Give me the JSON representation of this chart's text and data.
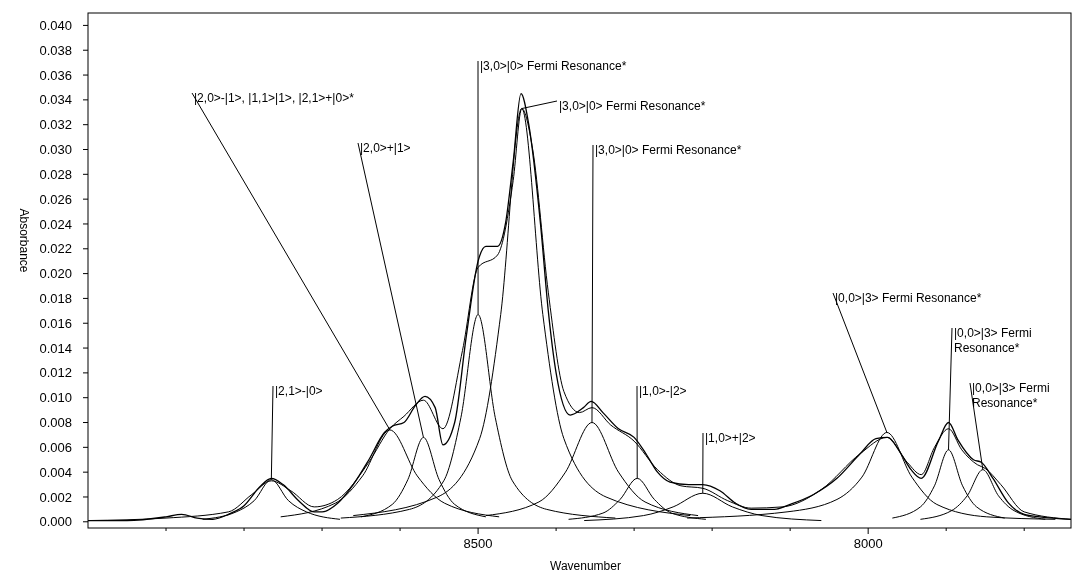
{
  "chart_data": {
    "type": "line",
    "xlabel": "Wavenumber",
    "ylabel": "Absorbance",
    "xlim": [
      9000,
      7740
    ],
    "ylim": [
      -0.0005,
      0.041
    ],
    "xticks": [
      {
        "value": 8900,
        "label": null
      },
      {
        "value": 8800,
        "label": null
      },
      {
        "value": 8700,
        "label": null
      },
      {
        "value": 8600,
        "label": null
      },
      8500,
      {
        "value": 8400,
        "label": null
      },
      {
        "value": 8300,
        "label": null
      },
      {
        "value": 8200,
        "label": null
      },
      {
        "value": 8100,
        "label": null
      },
      8000,
      {
        "value": 7900,
        "label": null
      },
      {
        "value": 7800,
        "label": null
      }
    ],
    "yticks": [
      {
        "value": 0,
        "label": "0.000"
      },
      {
        "value": 0.002,
        "label": "0.002"
      },
      {
        "value": 0.004,
        "label": "0.004"
      },
      {
        "value": 0.006,
        "label": "0.006"
      },
      {
        "value": 0.008,
        "label": "0.008"
      },
      {
        "value": 0.01,
        "label": "0.010"
      },
      {
        "value": 0.012,
        "label": "0.012"
      },
      {
        "value": 0.014,
        "label": "0.014"
      },
      {
        "value": 0.016,
        "label": "0.016"
      },
      {
        "value": 0.018,
        "label": "0.018"
      },
      {
        "value": 0.02,
        "label": "0.020"
      },
      {
        "value": 0.022,
        "label": "0.022"
      },
      {
        "value": 0.024,
        "label": "0.024"
      },
      {
        "value": 0.026,
        "label": "0.026"
      },
      {
        "value": 0.028,
        "label": "0.028"
      },
      {
        "value": 0.03,
        "label": "0.030"
      },
      {
        "value": 0.032,
        "label": "0.032"
      },
      {
        "value": 0.034,
        "label": "0.034"
      },
      {
        "value": 0.036,
        "label": "0.036"
      },
      {
        "value": 0.038,
        "label": "0.038"
      },
      {
        "value": 0.04,
        "label": "0.040"
      }
    ],
    "grid": false,
    "series": [
      {
        "color": "#000000",
        "x": [
          9000,
          8950,
          8900,
          8880,
          8860,
          8840,
          8820,
          8800,
          8780,
          8765,
          8750,
          8730,
          8710,
          8700,
          8680,
          8660,
          8640,
          8620,
          8610,
          8595,
          8580,
          8568,
          8555,
          8545,
          8530,
          8515,
          8500,
          8490,
          8475,
          8465,
          8455,
          8445,
          8435,
          8420,
          8410,
          8400,
          8382,
          8365,
          8355,
          8340,
          8320,
          8300,
          8285,
          8270,
          8254,
          8230,
          8212,
          8190,
          8170,
          8150,
          8120,
          8100,
          8070,
          8040,
          8010,
          7990,
          7975,
          7960,
          7945,
          7932,
          7910,
          7897,
          7885,
          7865,
          7855,
          7840,
          7820,
          7800,
          7780,
          7740
        ],
        "values": [
          0.0001,
          0.0001,
          0.0004,
          0.0006,
          0.0003,
          0.0002,
          0.0006,
          0.0013,
          0.0028,
          0.0035,
          0.003,
          0.0017,
          0.0008,
          0.0008,
          0.0015,
          0.003,
          0.005,
          0.0072,
          0.0077,
          0.008,
          0.0094,
          0.0101,
          0.0092,
          0.0062,
          0.008,
          0.015,
          0.021,
          0.0222,
          0.0222,
          0.024,
          0.029,
          0.0345,
          0.032,
          0.024,
          0.017,
          0.012,
          0.0086,
          0.0092,
          0.0097,
          0.0088,
          0.0075,
          0.0068,
          0.0055,
          0.004,
          0.0032,
          0.003,
          0.003,
          0.0025,
          0.0015,
          0.001,
          0.001,
          0.0014,
          0.0022,
          0.0035,
          0.0055,
          0.0067,
          0.0068,
          0.0057,
          0.0042,
          0.0035,
          0.0065,
          0.008,
          0.0066,
          0.005,
          0.0048,
          0.0035,
          0.0015,
          0.0006,
          0.0004,
          0.0002
        ]
      },
      {
        "color": "#000000",
        "x": [
          9000,
          8900,
          8820,
          8790,
          8765,
          8740,
          8710,
          8680,
          8640,
          8613,
          8595,
          8570,
          8545,
          8520,
          8500,
          8475,
          8455,
          8444,
          8430,
          8410,
          8390,
          8370,
          8354,
          8330,
          8300,
          8270,
          8240,
          8212,
          8180,
          8150,
          8110,
          8060,
          8010,
          7976,
          7950,
          7932,
          7915,
          7897,
          7880,
          7860,
          7850,
          7830,
          7800,
          7740
        ],
        "values": [
          0.0001,
          0.0003,
          0.0008,
          0.0022,
          0.0033,
          0.0025,
          0.0012,
          0.0018,
          0.0048,
          0.0075,
          0.0085,
          0.0098,
          0.0075,
          0.0138,
          0.0205,
          0.0215,
          0.0275,
          0.0333,
          0.03,
          0.0185,
          0.0105,
          0.0088,
          0.0092,
          0.0078,
          0.0065,
          0.0042,
          0.0029,
          0.0027,
          0.0017,
          0.0011,
          0.0012,
          0.0026,
          0.0055,
          0.0068,
          0.0048,
          0.0038,
          0.006,
          0.0075,
          0.0058,
          0.0046,
          0.0043,
          0.003,
          0.0008,
          0.0002
        ]
      },
      {
        "color": "#000000",
        "x": [
          8853,
          8810,
          8787,
          8765,
          8743,
          8720,
          8677
        ],
        "values": [
          0.0002,
          0.0008,
          0.0017,
          0.0034,
          0.0017,
          0.0008,
          0.0002
        ]
      },
      {
        "color": "#000000",
        "x": [
          8753,
          8683,
          8648,
          8613,
          8578,
          8543,
          8473
        ],
        "values": [
          0.0004,
          0.0015,
          0.0037,
          0.0074,
          0.0037,
          0.0015,
          0.0004
        ]
      },
      {
        "color": "#000000",
        "x": [
          8650,
          8610,
          8590,
          8570,
          8550,
          8530,
          8490
        ],
        "values": [
          0.0004,
          0.0014,
          0.0034,
          0.0068,
          0.0034,
          0.0014,
          0.0004
        ]
      },
      {
        "color": "#000000",
        "x": [
          8676,
          8588,
          8544,
          8522,
          8500,
          8478,
          8456,
          8412,
          8324
        ],
        "values": [
          0.0003,
          0.001,
          0.0033,
          0.0084,
          0.0167,
          0.0084,
          0.0033,
          0.001,
          0.0003
        ]
      },
      {
        "color": "#000000",
        "x": [
          8660,
          8552,
          8498,
          8471,
          8444,
          8417,
          8390,
          8336,
          8228
        ],
        "values": [
          0.0005,
          0.002,
          0.0067,
          0.0167,
          0.0333,
          0.0167,
          0.0067,
          0.002,
          0.0005
        ]
      },
      {
        "color": "#000000",
        "x": [
          8490,
          8422,
          8388,
          8354,
          8320,
          8286,
          8218
        ],
        "values": [
          0.0005,
          0.0016,
          0.004,
          0.008,
          0.004,
          0.0016,
          0.0005
        ]
      },
      {
        "color": "#000000",
        "x": [
          8384,
          8340,
          8318,
          8296,
          8274,
          8252,
          8208
        ],
        "values": [
          0.0002,
          0.0007,
          0.0018,
          0.0035,
          0.0018,
          0.0007,
          0.0002
        ]
      },
      {
        "color": "#000000",
        "x": [
          8364,
          8288,
          8250,
          8212,
          8174,
          8136,
          8060
        ],
        "values": [
          0.0001,
          0.0005,
          0.0012,
          0.0023,
          0.0012,
          0.0005,
          0.0001
        ]
      },
      {
        "color": "#000000",
        "x": [
          8232,
          8104,
          8040,
          8008,
          7976,
          7944,
          7912,
          7848,
          7760
        ],
        "values": [
          0.0003,
          0.0008,
          0.0018,
          0.0036,
          0.0072,
          0.0036,
          0.0014,
          0.0004,
          0.0002
        ]
      },
      {
        "color": "#000000",
        "x": [
          7969,
          7933,
          7915,
          7897,
          7879,
          7861,
          7825
        ],
        "values": [
          0.0003,
          0.0012,
          0.0029,
          0.0058,
          0.0029,
          0.0012,
          0.0003
        ]
      },
      {
        "color": "#000000",
        "x": [
          7933,
          7893,
          7873,
          7853,
          7833,
          7813,
          7773
        ],
        "values": [
          0.0002,
          0.0009,
          0.0021,
          0.0042,
          0.0021,
          0.0009,
          0.0002
        ]
      }
    ],
    "annotations": [
      {
        "text": "|2,0>-|1>, |1,1>|1>, |2,1>+|0>*",
        "x": 8613,
        "y": 0.0074
      },
      {
        "text": "|2,0>+|1>",
        "x": 8570,
        "y": 0.0068
      },
      {
        "text": "|3,0>|0> Fermi Resonance*",
        "x": 8500,
        "y": 0.0167
      },
      {
        "text": "|3,0>|0> Fermi Resonance*",
        "x": 8444,
        "y": 0.0333
      },
      {
        "text": "|3,0>|0> Fermi Resonance*",
        "x": 8354,
        "y": 0.008
      },
      {
        "text": "|2,1>-|0>",
        "x": 8765,
        "y": 0.0034
      },
      {
        "text": "|1,0>-|2>",
        "x": 8296,
        "y": 0.0035
      },
      {
        "text": "|1,0>+|2>",
        "x": 8212,
        "y": 0.0023
      },
      {
        "text": "|0,0>|3> Fermi Resonance*",
        "x": 7976,
        "y": 0.0072
      },
      {
        "text": "|0,0>|3> Fermi Resonance*",
        "x": 7897,
        "y": 0.0058
      },
      {
        "text": "|0,0>|3> Fermi Resonance*",
        "x": 7853,
        "y": 0.0042
      }
    ]
  }
}
